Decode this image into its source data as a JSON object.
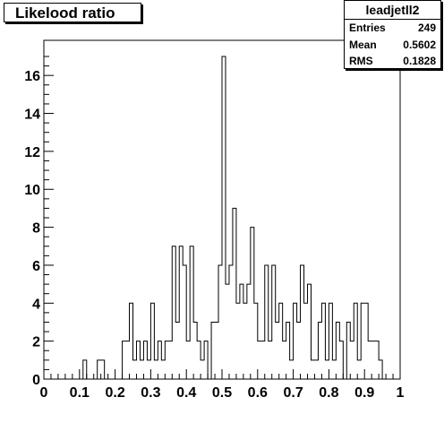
{
  "chart_data": {
    "type": "bar",
    "title": "Likelood ratio",
    "stats": {
      "name": "leadjetll2",
      "rows": [
        {
          "label": "Entries",
          "value": "249"
        },
        {
          "label": "Mean",
          "value": "0.5602"
        },
        {
          "label": "RMS",
          "value": "0.1828"
        }
      ]
    },
    "xlim": [
      0,
      1
    ],
    "ylim": [
      0,
      17.85
    ],
    "bin_width": 0.01,
    "x_ticks": [
      0,
      0.1,
      0.2,
      0.3,
      0.4,
      0.5,
      0.6,
      0.7,
      0.8,
      0.9,
      1
    ],
    "x_tick_labels": [
      "0",
      "0.1",
      "0.2",
      "0.3",
      "0.4",
      "0.5",
      "0.6",
      "0.7",
      "0.8",
      "0.9",
      "1"
    ],
    "y_ticks": [
      0,
      2,
      4,
      6,
      8,
      10,
      12,
      14,
      16
    ],
    "y_tick_labels": [
      "0",
      "2",
      "4",
      "6",
      "8",
      "10",
      "12",
      "14",
      "16"
    ],
    "counts": [
      0,
      0,
      0,
      0,
      0,
      0,
      0,
      0,
      0,
      0,
      0,
      1,
      0,
      0,
      0,
      1,
      1,
      0,
      0,
      0,
      0,
      0,
      2,
      2,
      4,
      1,
      2,
      1,
      2,
      1,
      4,
      1,
      2,
      1,
      2,
      2,
      7,
      3,
      7,
      6,
      2,
      7,
      3,
      2,
      1,
      2,
      0,
      3,
      3,
      6,
      17,
      5,
      6,
      9,
      4,
      5,
      4,
      5,
      8,
      4,
      2,
      2,
      6,
      2,
      6,
      3,
      4,
      2,
      3,
      1,
      4,
      3,
      6,
      4,
      5,
      1,
      1,
      3,
      4,
      1,
      4,
      1,
      3,
      2,
      0,
      3,
      2,
      4,
      1,
      4,
      4,
      2,
      2,
      2,
      1,
      0,
      0,
      0,
      0,
      0
    ]
  }
}
